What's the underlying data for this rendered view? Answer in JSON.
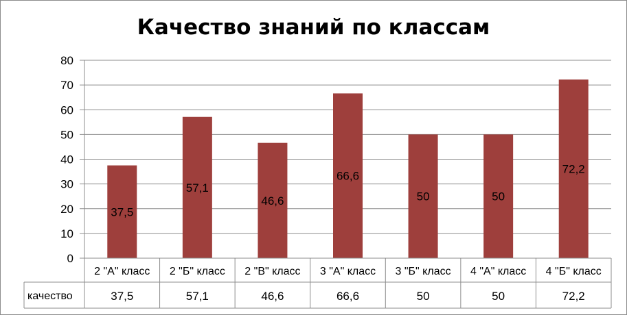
{
  "chart_data": {
    "type": "bar",
    "title": "Качество знаний по классам",
    "categories": [
      "2 \"А\" класс",
      "2 \"Б\" класс",
      "2 \"В\" класс",
      "3 \"А\" класс",
      "3 \"Б\" класс",
      "4 \"А\" класс",
      "4 \"Б\" класс"
    ],
    "series": [
      {
        "name": "качество",
        "values": [
          37.5,
          57.1,
          46.6,
          66.6,
          50,
          50,
          72.2
        ],
        "labels": [
          "37,5",
          "57,1",
          "46,6",
          "66,6",
          "50",
          "50",
          "72,2"
        ],
        "color": "#9e3f3c"
      }
    ],
    "ylim": [
      0,
      80
    ],
    "yticks": [
      0,
      10,
      20,
      30,
      40,
      50,
      60,
      70,
      80
    ],
    "grid": true,
    "legend": "data-table",
    "data_table": true
  }
}
